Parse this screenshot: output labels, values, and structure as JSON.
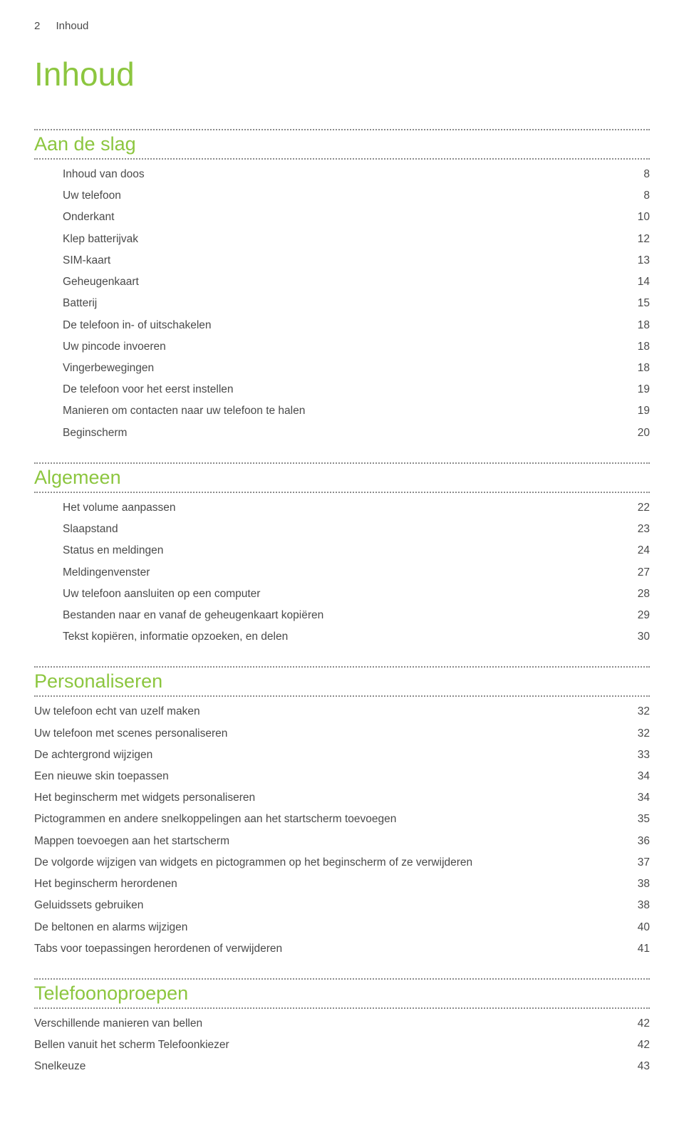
{
  "header": {
    "page_number": "2",
    "page_label": "Inhoud"
  },
  "title": "Inhoud",
  "sections": [
    {
      "heading": "Aan de slag",
      "indent": true,
      "entries": [
        {
          "label": "Inhoud van doos",
          "page": "8"
        },
        {
          "label": "Uw telefoon",
          "page": "8"
        },
        {
          "label": "Onderkant",
          "page": "10"
        },
        {
          "label": "Klep batterijvak",
          "page": "12"
        },
        {
          "label": "SIM-kaart",
          "page": "13"
        },
        {
          "label": "Geheugenkaart",
          "page": "14"
        },
        {
          "label": "Batterij",
          "page": "15"
        },
        {
          "label": "De telefoon in- of uitschakelen",
          "page": "18"
        },
        {
          "label": "Uw pincode invoeren",
          "page": "18"
        },
        {
          "label": "Vingerbewegingen",
          "page": "18"
        },
        {
          "label": "De telefoon voor het eerst instellen",
          "page": "19"
        },
        {
          "label": "Manieren om contacten naar uw telefoon te halen",
          "page": "19"
        },
        {
          "label": "Beginscherm",
          "page": "20"
        }
      ]
    },
    {
      "heading": "Algemeen",
      "indent": true,
      "entries": [
        {
          "label": "Het volume aanpassen",
          "page": "22"
        },
        {
          "label": "Slaapstand",
          "page": "23"
        },
        {
          "label": "Status en meldingen",
          "page": "24"
        },
        {
          "label": "Meldingenvenster",
          "page": "27"
        },
        {
          "label": "Uw telefoon aansluiten op een computer",
          "page": "28"
        },
        {
          "label": "Bestanden naar en vanaf de geheugenkaart kopiëren",
          "page": "29"
        },
        {
          "label": "Tekst kopiëren, informatie opzoeken, en delen",
          "page": "30"
        }
      ]
    },
    {
      "heading": "Personaliseren",
      "indent": false,
      "entries": [
        {
          "label": "Uw telefoon echt van uzelf maken",
          "page": "32"
        },
        {
          "label": "Uw telefoon met scenes personaliseren",
          "page": "32"
        },
        {
          "label": "De achtergrond wijzigen",
          "page": "33"
        },
        {
          "label": "Een nieuwe skin toepassen",
          "page": "34"
        },
        {
          "label": "Het beginscherm met widgets personaliseren",
          "page": "34"
        },
        {
          "label": "Pictogrammen en andere snelkoppelingen aan het startscherm toevoegen",
          "page": "35"
        },
        {
          "label": "Mappen toevoegen aan het startscherm",
          "page": "36"
        },
        {
          "label": "De volgorde wijzigen van widgets en pictogrammen op het beginscherm of ze verwijderen",
          "page": "37"
        },
        {
          "label": "Het beginscherm herordenen",
          "page": "38"
        },
        {
          "label": "Geluidssets gebruiken",
          "page": "38"
        },
        {
          "label": "De beltonen en alarms wijzigen",
          "page": "40"
        },
        {
          "label": "Tabs voor toepassingen herordenen of verwijderen",
          "page": "41"
        }
      ]
    },
    {
      "heading": "Telefoonoproepen",
      "indent": false,
      "entries": [
        {
          "label": "Verschillende manieren van bellen",
          "page": "42"
        },
        {
          "label": "Bellen vanuit het scherm Telefoonkiezer",
          "page": "42"
        },
        {
          "label": "Snelkeuze",
          "page": "43"
        }
      ]
    }
  ]
}
